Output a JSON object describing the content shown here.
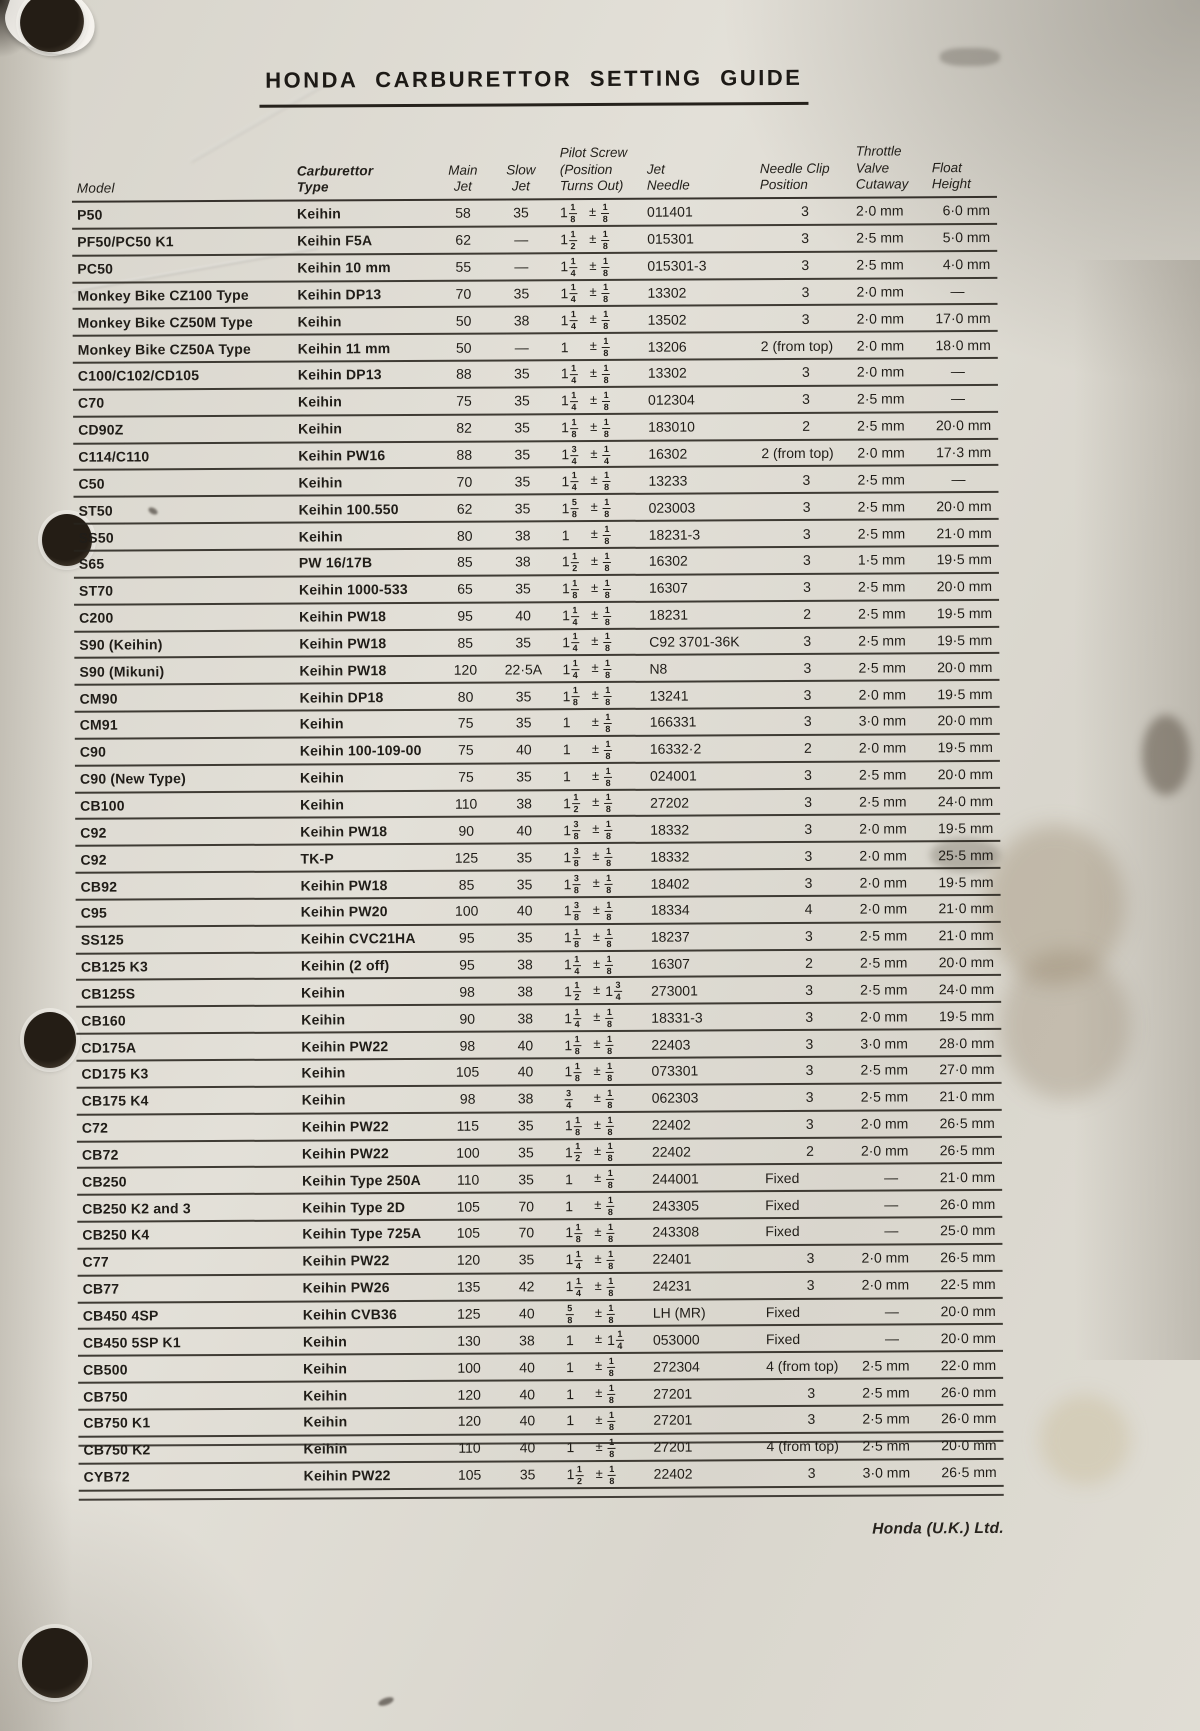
{
  "page": {
    "title": "HONDA CARBURETTOR SETTING GUIDE",
    "footer": "Honda (U.K.) Ltd."
  },
  "table": {
    "headers": {
      "model": [
        "Model"
      ],
      "type": [
        "Carburettor",
        "Type"
      ],
      "main": [
        "Main",
        "Jet"
      ],
      "slow": [
        "Slow",
        "Jet"
      ],
      "pilot": [
        "Pilot Screw",
        "(Position",
        "Turns Out)"
      ],
      "needle": [
        "Jet",
        "Needle"
      ],
      "clip": [
        "Needle Clip",
        "Position"
      ],
      "cut": [
        "Throttle",
        "Valve",
        "Cutaway"
      ],
      "float": [
        "Float",
        "Height"
      ]
    },
    "rows": [
      [
        "P50",
        "Keihin",
        "58",
        "35",
        "1 1/8 ± 1/8",
        "011401",
        "3",
        "2·0 mm",
        "6·0 mm"
      ],
      [
        "PF50/PC50 K1",
        "Keihin F5A",
        "62",
        "—",
        "1 1/2 ± 1/8",
        "015301",
        "3",
        "2·5 mm",
        "5·0 mm"
      ],
      [
        "PC50",
        "Keihin 10 mm",
        "55",
        "—",
        "1 1/4 ± 1/8",
        "015301-3",
        "3",
        "2·5 mm",
        "4·0 mm"
      ],
      [
        "Monkey Bike CZ100 Type",
        "Keihin DP13",
        "70",
        "35",
        "1 1/4 ± 1/8",
        "13302",
        "3",
        "2·0 mm",
        "—"
      ],
      [
        "Monkey Bike CZ50M Type",
        "Keihin",
        "50",
        "38",
        "1 1/4 ± 1/8",
        "13502",
        "3",
        "2·0 mm",
        "17·0 mm"
      ],
      [
        "Monkey Bike CZ50A Type",
        "Keihin 11 mm",
        "50",
        "—",
        "1 ± 1/8",
        "13206",
        "2 (from top)",
        "2·0 mm",
        "18·0 mm"
      ],
      [
        "C100/C102/CD105",
        "Keihin DP13",
        "88",
        "35",
        "1 1/4 ± 1/8",
        "13302",
        "3",
        "2·0 mm",
        "—"
      ],
      [
        "C70",
        "Keihin",
        "75",
        "35",
        "1 1/4 ± 1/8",
        "012304",
        "3",
        "2·5 mm",
        "—"
      ],
      [
        "CD90Z",
        "Keihin",
        "82",
        "35",
        "1 1/8 ± 1/8",
        "183010",
        "2",
        "2·5 mm",
        "20·0 mm"
      ],
      [
        "C114/C110",
        "Keihin PW16",
        "88",
        "35",
        "1 3/4 ± 1/4",
        "16302",
        "2 (from top)",
        "2·0 mm",
        "17·3 mm"
      ],
      [
        "C50",
        "Keihin",
        "70",
        "35",
        "1 1/4 ± 1/8",
        "13233",
        "3",
        "2·5 mm",
        "—"
      ],
      [
        "ST50",
        "Keihin 100.550",
        "62",
        "35",
        "1 5/8 ± 1/8",
        "023003",
        "3",
        "2·5 mm",
        "20·0 mm"
      ],
      [
        "SS50",
        "Keihin",
        "80",
        "38",
        "1 ± 1/8",
        "18231-3",
        "3",
        "2·5 mm",
        "21·0 mm"
      ],
      [
        "S65",
        "PW 16/17B",
        "85",
        "38",
        "1 1/2 ± 1/8",
        "16302",
        "3",
        "1·5 mm",
        "19·5 mm"
      ],
      [
        "ST70",
        "Keihin 1000-533",
        "65",
        "35",
        "1 1/8 ± 1/8",
        "16307",
        "3",
        "2·5 mm",
        "20·0 mm"
      ],
      [
        "C200",
        "Keihin PW18",
        "95",
        "40",
        "1 1/4 ± 1/8",
        "18231",
        "2",
        "2·5 mm",
        "19·5 mm"
      ],
      [
        "S90 (Keihin)",
        "Keihin PW18",
        "85",
        "35",
        "1 1/4 ± 1/8",
        "C92 3701-36K",
        "3",
        "2·5 mm",
        "19·5 mm"
      ],
      [
        "S90 (Mikuni)",
        "Keihin PW18",
        "120",
        "22·5A",
        "1 1/4 ± 1/8",
        "N8",
        "3",
        "2·5 mm",
        "20·0 mm"
      ],
      [
        "CM90",
        "Keihin DP18",
        "80",
        "35",
        "1 1/8 ± 1/8",
        "13241",
        "3",
        "2·0 mm",
        "19·5 mm"
      ],
      [
        "CM91",
        "Keihin",
        "75",
        "35",
        "1 ± 1/8",
        "166331",
        "3",
        "3·0 mm",
        "20·0 mm"
      ],
      [
        "C90",
        "Keihin 100-109-00",
        "75",
        "40",
        "1 ± 1/8",
        "16332·2",
        "2",
        "2·0 mm",
        "19·5 mm"
      ],
      [
        "C90 (New Type)",
        "Keihin",
        "75",
        "35",
        "1 ± 1/8",
        "024001",
        "3",
        "2·5 mm",
        "20·0 mm"
      ],
      [
        "CB100",
        "Keihin",
        "110",
        "38",
        "1 1/2 ± 1/8",
        "27202",
        "3",
        "2·5 mm",
        "24·0 mm"
      ],
      [
        "C92",
        "Keihin PW18",
        "90",
        "40",
        "1 3/8 ± 1/8",
        "18332",
        "3",
        "2·0 mm",
        "19·5 mm"
      ],
      [
        "C92",
        "TK-P",
        "125",
        "35",
        "1 3/8 ± 1/8",
        "18332",
        "3",
        "2·0 mm",
        "25·5 mm"
      ],
      [
        "CB92",
        "Keihin PW18",
        "85",
        "35",
        "1 3/8 ± 1/8",
        "18402",
        "3",
        "2·0 mm",
        "19·5 mm"
      ],
      [
        "C95",
        "Keihin PW20",
        "100",
        "40",
        "1 3/8 ± 1/8",
        "18334",
        "4",
        "2·0 mm",
        "21·0 mm"
      ],
      [
        "SS125",
        "Keihin CVC21HA",
        "95",
        "35",
        "1 1/8 ± 1/8",
        "18237",
        "3",
        "2·5 mm",
        "21·0 mm"
      ],
      [
        "CB125 K3",
        "Keihin (2 off)",
        "95",
        "38",
        "1 1/4 ± 1/8",
        "16307",
        "2",
        "2·5 mm",
        "20·0 mm"
      ],
      [
        "CB125S",
        "Keihin",
        "98",
        "38",
        "1 1/2 ± 1 3/4",
        "273001",
        "3",
        "2·5 mm",
        "24·0 mm"
      ],
      [
        "CB160",
        "Keihin",
        "90",
        "38",
        "1 1/4 ± 1/8",
        "18331-3",
        "3",
        "2·0 mm",
        "19·5 mm"
      ],
      [
        "CD175A",
        "Keihin PW22",
        "98",
        "40",
        "1 1/8 ± 1/8",
        "22403",
        "3",
        "3·0 mm",
        "28·0 mm"
      ],
      [
        "CD175 K3",
        "Keihin",
        "105",
        "40",
        "1 1/8 ± 1/8",
        "073301",
        "3",
        "2·5 mm",
        "27·0 mm"
      ],
      [
        "CB175 K4",
        "Keihin",
        "98",
        "38",
        "3/4 ± 1/8",
        "062303",
        "3",
        "2·5 mm",
        "21·0 mm"
      ],
      [
        "C72",
        "Keihin PW22",
        "115",
        "35",
        "1 1/8 ± 1/8",
        "22402",
        "3",
        "2·0 mm",
        "26·5 mm"
      ],
      [
        "CB72",
        "Keihin PW22",
        "100",
        "35",
        "1 1/2 ± 1/8",
        "22402",
        "2",
        "2·0 mm",
        "26·5 mm"
      ],
      [
        "CB250",
        "Keihin Type 250A",
        "110",
        "35",
        "1 ± 1/8",
        "244001",
        "Fixed",
        "—",
        "21·0 mm"
      ],
      [
        "CB250 K2 and 3",
        "Keihin Type 2D",
        "105",
        "70",
        "1 ± 1/8",
        "243305",
        "Fixed",
        "—",
        "26·0 mm"
      ],
      [
        "CB250 K4",
        "Keihin Type 725A",
        "105",
        "70",
        "1 1/8 ± 1/8",
        "243308",
        "Fixed",
        "—",
        "25·0 mm"
      ],
      [
        "C77",
        "Keihin PW22",
        "120",
        "35",
        "1 1/4 ± 1/8",
        "22401",
        "3",
        "2·0 mm",
        "26·5 mm"
      ],
      [
        "CB77",
        "Keihin PW26",
        "135",
        "42",
        "1 1/4 ± 1/8",
        "24231",
        "3",
        "2·0 mm",
        "22·5 mm"
      ],
      [
        "CB450 4SP",
        "Keihin CVB36",
        "125",
        "40",
        "5/8 ± 1/8",
        "LH (MR)",
        "Fixed",
        "—",
        "20·0 mm"
      ],
      [
        "CB450 5SP K1",
        "Keihin",
        "130",
        "38",
        "1 ± 1 1/4",
        "053000",
        "Fixed",
        "—",
        "20·0 mm"
      ],
      [
        "CB500",
        "Keihin",
        "100",
        "40",
        "1 ± 1/8",
        "272304",
        "4 (from top)",
        "2·5 mm",
        "22·0 mm"
      ],
      [
        "CB750",
        "Keihin",
        "120",
        "40",
        "1 ± 1/8",
        "27201",
        "3",
        "2·5 mm",
        "26·0 mm"
      ],
      [
        "CB750 K1",
        "Keihin",
        "120",
        "40",
        "1 ± 1/8",
        "27201",
        "3",
        "2·5 mm",
        "26·0 mm"
      ],
      [
        "CB750 K2",
        "Keihin",
        "110",
        "40",
        "1 ± 1/8",
        "27201",
        "4 (from top)",
        "2·5 mm",
        "20·0 mm"
      ],
      [
        "CYB72",
        "Keihin PW22",
        "105",
        "35",
        "1 1/2 ± 1/8",
        "22402",
        "3",
        "3·0 mm",
        "26·5 mm"
      ]
    ]
  }
}
